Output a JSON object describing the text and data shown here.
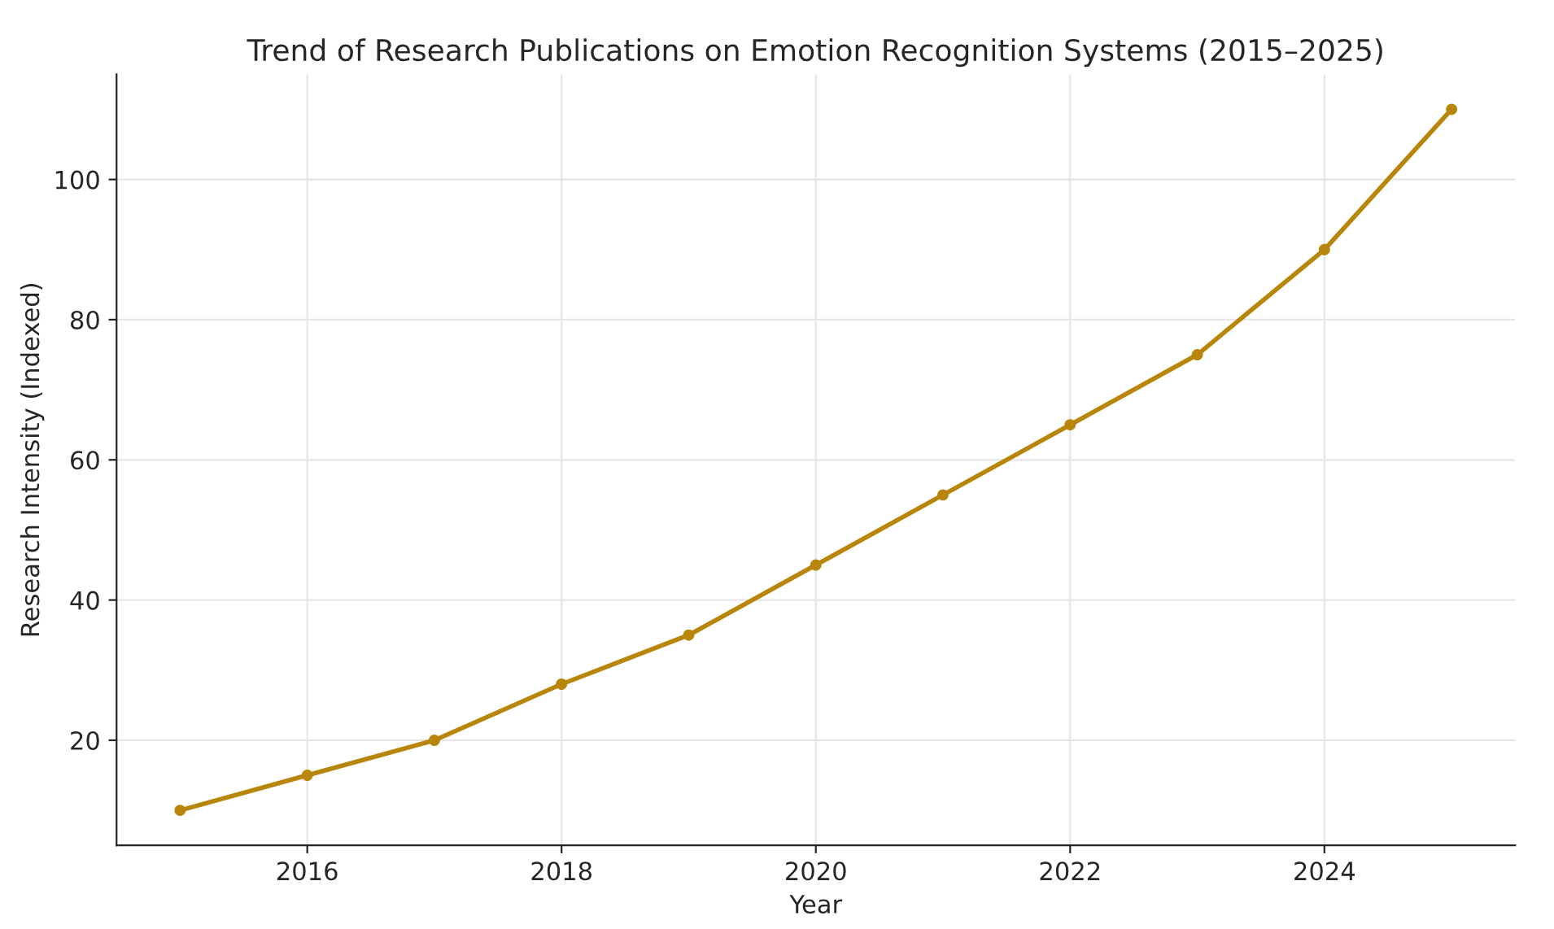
{
  "chart_data": {
    "type": "line",
    "title": "Trend of Research Publications on Emotion Recognition Systems (2015–2025)",
    "xlabel": "Year",
    "ylabel": "Research Intensity (Indexed)",
    "x": [
      2015,
      2016,
      2017,
      2018,
      2019,
      2020,
      2021,
      2022,
      2023,
      2024,
      2025
    ],
    "series": [
      {
        "color": "#b8860b",
        "values": [
          10,
          15,
          20,
          28,
          35,
          45,
          55,
          65,
          75,
          90,
          110
        ]
      }
    ],
    "xlim": [
      2014.5,
      2025.5
    ],
    "xticks": [
      2016,
      2018,
      2020,
      2022,
      2024
    ],
    "ylim": [
      5,
      115
    ],
    "yticks": [
      20,
      40,
      60,
      80,
      100
    ],
    "grid": true,
    "marker": "circle",
    "line_style": "solid"
  }
}
